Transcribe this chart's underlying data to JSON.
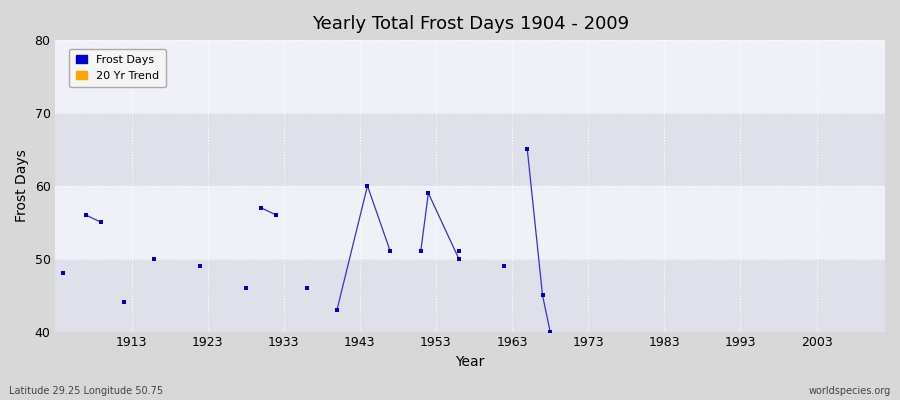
{
  "title": "Yearly Total Frost Days 1904 - 2009",
  "xlabel": "Year",
  "ylabel": "Frost Days",
  "xlim": [
    1903,
    2012
  ],
  "ylim": [
    40,
    80
  ],
  "yticks": [
    40,
    50,
    60,
    70,
    80
  ],
  "xticks": [
    1913,
    1923,
    1933,
    1943,
    1953,
    1963,
    1973,
    1983,
    1993,
    2003
  ],
  "scatter_points": [
    [
      1904,
      48
    ],
    [
      1912,
      44
    ],
    [
      1916,
      50
    ],
    [
      1922,
      49
    ],
    [
      1928,
      46
    ],
    [
      1932,
      56
    ],
    [
      1936,
      46
    ],
    [
      1956,
      51
    ],
    [
      1962,
      49
    ]
  ],
  "line_segments": [
    [
      [
        1907,
        56
      ],
      [
        1909,
        55
      ]
    ],
    [
      [
        1930,
        57
      ],
      [
        1932,
        56
      ]
    ],
    [
      [
        1940,
        43
      ],
      [
        1944,
        60
      ]
    ],
    [
      [
        1944,
        60
      ],
      [
        1947,
        51
      ]
    ],
    [
      [
        1951,
        51
      ],
      [
        1952,
        59
      ]
    ],
    [
      [
        1952,
        59
      ],
      [
        1956,
        50
      ]
    ],
    [
      [
        1965,
        65
      ],
      [
        1967,
        45
      ]
    ],
    [
      [
        1967,
        45
      ],
      [
        1968,
        40
      ]
    ]
  ],
  "point_color": "#0000cc",
  "line_color": "#3333cc",
  "bg_outer": "#d8d8d8",
  "bg_inner": "#e8e8f0",
  "bg_band_light": "#f0f0f8",
  "bg_band_dark": "#e0e0ea",
  "grid_color": "#ffffff",
  "footer_left": "Latitude 29.25 Longitude 50.75",
  "footer_right": "worldspecies.org",
  "legend_entries": [
    {
      "label": "Frost Days",
      "color": "#0000cc"
    },
    {
      "label": "20 Yr Trend",
      "color": "#ffa500"
    }
  ]
}
